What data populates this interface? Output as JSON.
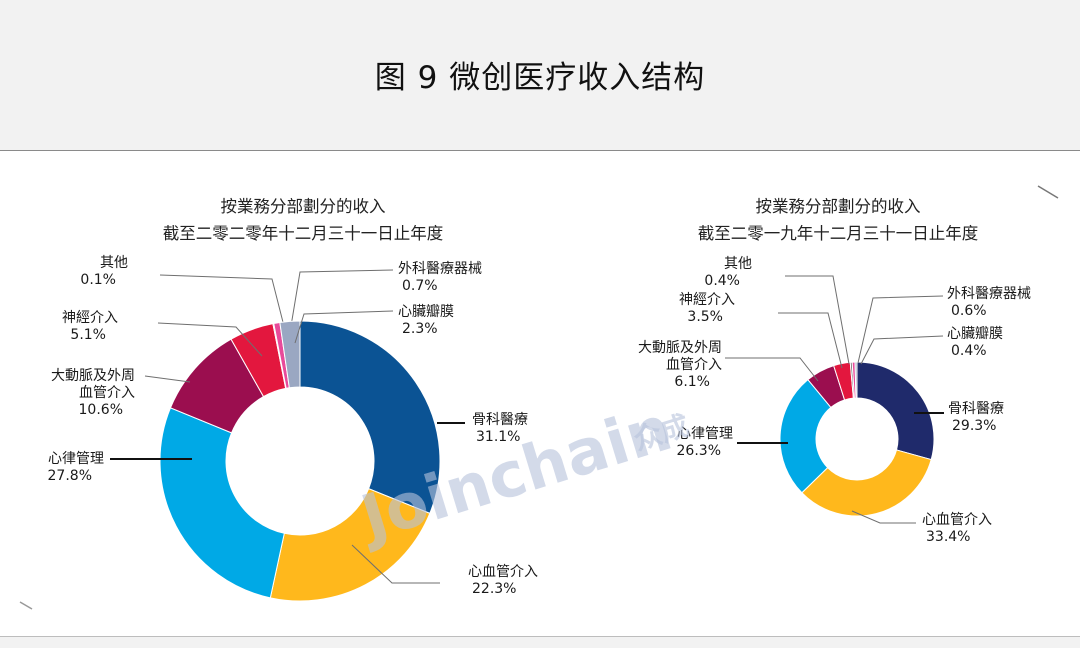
{
  "page_title": "图 9 微创医疗收入结构",
  "watermark": {
    "text": "Joinchain",
    "mark": "众成",
    "color": "#9fb0d3"
  },
  "colors": {
    "骨科醫療_2020": "#0b5394",
    "骨科醫療_2019": "#1f2a6b",
    "心血管介入": "#ffb81c",
    "心律管理": "#00a9e6",
    "大動脈及外周血管介入": "#9b0e4f",
    "神經介入": "#e3173e",
    "心臟瓣膜": "#9aa7c2",
    "外科醫療器械": "#e84a9a",
    "其他": "#6a6a6a"
  },
  "chart_data": [
    {
      "type": "pie",
      "donut": true,
      "title": [
        "按業務分部劃分的收入",
        "截至二零二零年十二月三十一日止年度"
      ],
      "slices": [
        {
          "name": "骨科醫療",
          "value": 31.1,
          "label": "31.1%",
          "color": "#0b5394"
        },
        {
          "name": "心血管介入",
          "value": 22.3,
          "label": "22.3%",
          "color": "#ffb81c"
        },
        {
          "name": "心律管理",
          "value": 27.8,
          "label": "27.8%",
          "color": "#00a9e6"
        },
        {
          "name": "大動脈及外周血管介入",
          "value": 10.6,
          "label": "10.6%",
          "color": "#9b0e4f",
          "label_lines": [
            "大動脈及外周",
            "血管介入"
          ]
        },
        {
          "name": "神經介入",
          "value": 5.1,
          "label": "5.1%",
          "color": "#e3173e"
        },
        {
          "name": "其他",
          "value": 0.1,
          "label": "0.1%",
          "color": "#6a6a6a"
        },
        {
          "name": "外科醫療器械",
          "value": 0.7,
          "label": "0.7%",
          "color": "#e84a9a"
        },
        {
          "name": "心臟瓣膜",
          "value": 2.3,
          "label": "2.3%",
          "color": "#9aa7c2"
        }
      ]
    },
    {
      "type": "pie",
      "donut": true,
      "title": [
        "按業務分部劃分的收入",
        "截至二零一九年十二月三十一日止年度"
      ],
      "slices": [
        {
          "name": "骨科醫療",
          "value": 29.3,
          "label": "29.3%",
          "color": "#1f2a6b"
        },
        {
          "name": "心血管介入",
          "value": 33.4,
          "label": "33.4%",
          "color": "#ffb81c"
        },
        {
          "name": "心律管理",
          "value": 26.3,
          "label": "26.3%",
          "color": "#00a9e6"
        },
        {
          "name": "大動脈及外周血管介入",
          "value": 6.1,
          "label": "6.1%",
          "color": "#9b0e4f",
          "label_lines": [
            "大動脈及外周",
            "血管介入"
          ]
        },
        {
          "name": "神經介入",
          "value": 3.5,
          "label": "3.5%",
          "color": "#e3173e"
        },
        {
          "name": "其他",
          "value": 0.4,
          "label": "0.4%",
          "color": "#6a6a6a"
        },
        {
          "name": "外科醫療器械",
          "value": 0.6,
          "label": "0.6%",
          "color": "#e84a9a"
        },
        {
          "name": "心臟瓣膜",
          "value": 0.4,
          "label": "0.4%",
          "color": "#9aa7c2"
        }
      ]
    }
  ]
}
